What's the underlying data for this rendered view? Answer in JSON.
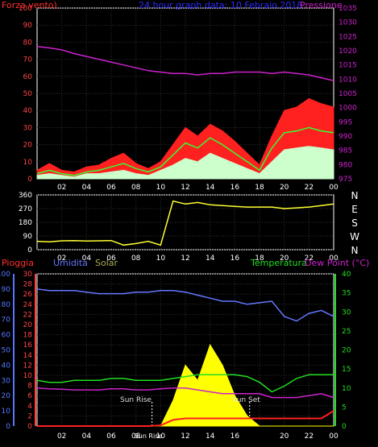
{
  "header": {
    "left_label": "Forza vento)",
    "title": "24 hour graph data: 10 Febraio 2018",
    "right_label": "Pressione"
  },
  "panel3": {
    "rain_label": "Pioggia",
    "hum_label": "Umidita",
    "solar_label": "Solar",
    "temp_label": "Temperatura",
    "dew_label": "Dew Point (°C)",
    "sunrise_label": "Sun Rise",
    "sunset_label": "Sun Set"
  },
  "colors": {
    "wind": "#ff2020",
    "pressure": "#cc22cc",
    "direction": "#ffff33",
    "humidity": "#6677ff",
    "temperature": "#22dd22",
    "dew": "#cc22cc",
    "solar": "#ffff00",
    "rain": "#ff2020",
    "gust": "#33ff33",
    "light": "#ccffcc",
    "axis_left": "#ff4444",
    "axis_right": "#cc22cc",
    "axis_blue": "#5577ff",
    "axis_green": "#22dd22"
  },
  "chart_data": [
    {
      "type": "line",
      "title": "24 hour graph data: 10 Febraio 2018",
      "xlabel": "",
      "x_ticks": [
        "02",
        "04",
        "06",
        "08",
        "10",
        "12",
        "14",
        "16",
        "18",
        "20",
        "22",
        "00"
      ],
      "left_axis": {
        "label": "Forza vento)",
        "ylim": [
          0,
          100
        ],
        "ticks": [
          0,
          10,
          20,
          30,
          40,
          50,
          60,
          70,
          80,
          90,
          100
        ]
      },
      "right_axis": {
        "label": "Pressione",
        "ylim": [
          975,
          1035
        ],
        "ticks": [
          975,
          980,
          985,
          990,
          995,
          1000,
          1005,
          1010,
          1015,
          1020,
          1025,
          1030,
          1035
        ]
      },
      "grid": true,
      "x": [
        0,
        1,
        2,
        3,
        4,
        5,
        6,
        7,
        8,
        9,
        10,
        11,
        12,
        13,
        14,
        15,
        16,
        17,
        18,
        19,
        20,
        21,
        22,
        23,
        24
      ],
      "series": [
        {
          "name": "Pressione",
          "axis": "right",
          "values": [
            1021.5,
            1021,
            1020.3,
            1019,
            1018,
            1017,
            1016,
            1015,
            1014,
            1013,
            1012.5,
            1012,
            1012,
            1011.5,
            1012,
            1012,
            1012.5,
            1012.5,
            1012.5,
            1012,
            1012.5,
            1012,
            1011.5,
            1010.5,
            1009.5
          ]
        },
        {
          "name": "wind-peak",
          "axis": "left",
          "values": [
            5,
            9,
            5,
            4,
            7,
            8,
            12,
            15,
            9,
            6,
            10,
            20,
            30,
            25,
            32,
            28,
            22,
            15,
            8,
            25,
            40,
            42,
            47,
            44,
            42
          ]
        },
        {
          "name": "wind-mid",
          "axis": "left",
          "values": [
            3,
            5,
            3,
            2,
            4,
            5,
            7,
            9,
            6,
            4,
            7,
            14,
            21,
            18,
            24,
            20,
            15,
            10,
            5,
            18,
            27,
            28,
            30,
            28,
            27
          ]
        },
        {
          "name": "wind-base",
          "axis": "left",
          "values": [
            2,
            3,
            2,
            1,
            3,
            3,
            4,
            5,
            3,
            2,
            5,
            8,
            12,
            10,
            15,
            12,
            9,
            6,
            3,
            10,
            17,
            18,
            19,
            18,
            17
          ]
        }
      ]
    },
    {
      "type": "line",
      "y_ticks": [
        0,
        90,
        180,
        270,
        360
      ],
      "right_ticks": [
        "N",
        "W",
        "S",
        "E",
        "N"
      ],
      "ylim": [
        0,
        360
      ],
      "x_ticks": [
        "02",
        "04",
        "06",
        "08",
        "10",
        "12",
        "14",
        "16",
        "18",
        "20",
        "22",
        "00"
      ],
      "x": [
        0,
        1,
        2,
        3,
        4,
        5,
        6,
        7,
        8,
        9,
        10,
        11,
        12,
        13,
        14,
        15,
        16,
        17,
        18,
        19,
        20,
        21,
        22,
        23,
        24
      ],
      "series": [
        {
          "name": "direction",
          "values": [
            55,
            52,
            58,
            60,
            57,
            58,
            60,
            30,
            40,
            55,
            30,
            320,
            300,
            310,
            295,
            290,
            285,
            280,
            280,
            280,
            270,
            275,
            280,
            290,
            300
          ]
        }
      ]
    },
    {
      "type": "line",
      "x_ticks": [
        "02",
        "04",
        "06",
        "08",
        "SunRise",
        "10",
        "12",
        "14",
        "16",
        "SunSet",
        "20",
        "22",
        "00"
      ],
      "left_outer_axis": {
        "label": "Pioggia",
        "ylim": [
          0,
          100
        ],
        "ticks": [
          0,
          10,
          20,
          30,
          40,
          50,
          60,
          70,
          80,
          90,
          100
        ]
      },
      "left_inner_axis": {
        "label": "Umidita",
        "ylim": [
          0,
          30
        ],
        "ticks": [
          0,
          2,
          4,
          6,
          8,
          10,
          12,
          14,
          16,
          18,
          20,
          22,
          24,
          26,
          28,
          30
        ]
      },
      "right_axis": {
        "label": "Dew Point (°C)",
        "ylim": [
          0,
          40
        ],
        "ticks": [
          0,
          5,
          10,
          15,
          20,
          25,
          30,
          35,
          40
        ]
      },
      "x": [
        0,
        1,
        2,
        3,
        4,
        5,
        6,
        7,
        8,
        9,
        10,
        11,
        12,
        13,
        14,
        15,
        16,
        17,
        18,
        19,
        20,
        21,
        22,
        23,
        24
      ],
      "series": [
        {
          "name": "Umidita",
          "values": [
            90,
            89,
            89,
            89,
            88,
            87,
            87,
            87,
            88,
            88,
            89,
            89,
            88,
            86,
            84,
            82,
            82,
            80,
            81,
            82,
            72,
            69,
            74,
            76,
            72
          ]
        },
        {
          "name": "Temperatura",
          "values": [
            12,
            11.5,
            11.5,
            12,
            12,
            12,
            12.5,
            12.5,
            12,
            12,
            12,
            12.5,
            13,
            13.5,
            13.5,
            13.5,
            13.5,
            13,
            11.5,
            9,
            10.5,
            12.5,
            13.5,
            13.5,
            13.5
          ]
        },
        {
          "name": "Dew Point",
          "values": [
            10,
            9.8,
            9.7,
            9.5,
            9.5,
            9.5,
            9.8,
            9.8,
            9.5,
            9.5,
            9.8,
            10,
            10,
            9.5,
            9,
            8.5,
            8.5,
            8.5,
            8.5,
            7.5,
            7.5,
            7.5,
            8,
            8.5,
            7.5
          ]
        },
        {
          "name": "Solar",
          "values": [
            0,
            0,
            0,
            0,
            0,
            0,
            0,
            0,
            0,
            0,
            0,
            5,
            12,
            9,
            16,
            12,
            6,
            2,
            0,
            0,
            0,
            0,
            0,
            0,
            0
          ]
        },
        {
          "name": "Pioggia",
          "values": [
            0,
            0,
            0,
            0,
            0,
            0,
            0,
            0,
            0,
            0,
            0.5,
            4,
            5,
            5,
            5,
            5,
            5,
            5,
            5,
            5,
            5,
            5,
            5,
            5,
            10
          ]
        }
      ]
    }
  ]
}
